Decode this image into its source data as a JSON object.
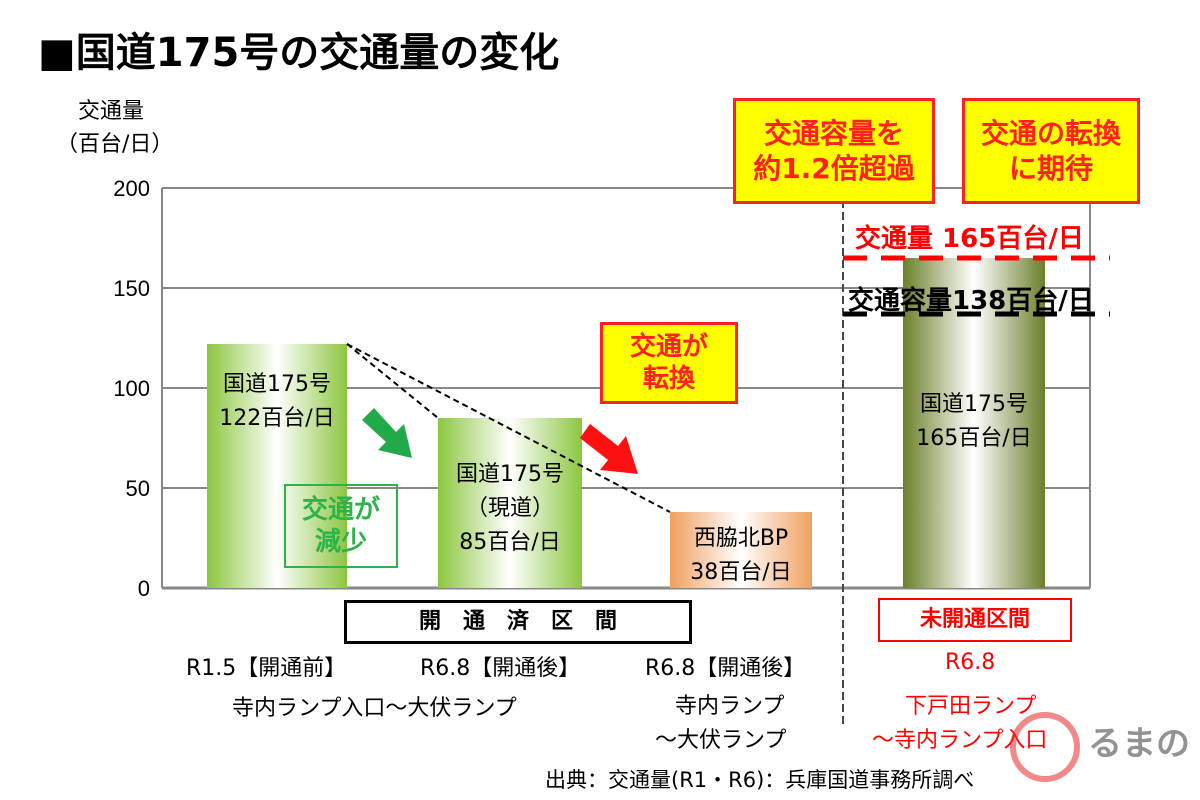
{
  "chart_data": {
    "type": "bar",
    "title": "■国道175号の交通量の変化",
    "ylabel": "交通量",
    "yunit": "（百台/日）",
    "ylim": [
      0,
      200
    ],
    "yticks": [
      "0",
      "50",
      "100",
      "150",
      "200"
    ],
    "categories": [
      "R1.5【開通前】 国道175号",
      "R6.8【開通後】 国道175号（現道）",
      "R6.8【開通後】 西脇北BP",
      "R6.8 未開通区間 国道175号"
    ],
    "values": [
      122,
      85,
      38,
      165
    ],
    "bar_labels": [
      [
        "国道175号",
        "122百台/日"
      ],
      [
        "国道175号",
        "（現道）",
        "85百台/日"
      ],
      [
        "西脇北BP",
        "38百台/日"
      ],
      [
        "国道175号",
        "165百台/日"
      ]
    ],
    "colors": [
      "#8cc63f",
      "#8cc63f",
      "#f0a060",
      "#6b7f2a"
    ],
    "reference_lines": [
      {
        "label": "交通量 165百台/日",
        "value": 165,
        "color": "#ff0000"
      },
      {
        "label": "交通容量138百台/日",
        "value": 138,
        "color": "#000000"
      }
    ],
    "annotations": {
      "decrease": "交通が\n減少",
      "shift": "交通が\n転換",
      "over": "交通容量を\n約1.2倍超過",
      "expect": "交通の転換\nに期待"
    },
    "groups": {
      "opened": "開　通　済　区　間",
      "unopened": "未開通区間"
    },
    "xlabels": {
      "c1": "R1.5【開通前】",
      "c2": "R6.8【開通後】",
      "c12": "寺内ランプ入口～大伏ランプ",
      "c3": "R6.8【開通後】",
      "c3a": "寺内ランプ",
      "c3b": "～大伏ランプ",
      "c4": "R6.8",
      "c4a": "下戸田ランプ",
      "c4b": "～寺内ランプ入口"
    },
    "source": "出典：交通量(R1・R6)：兵庫国道事務所調べ",
    "logo": "くるまのニュース"
  }
}
